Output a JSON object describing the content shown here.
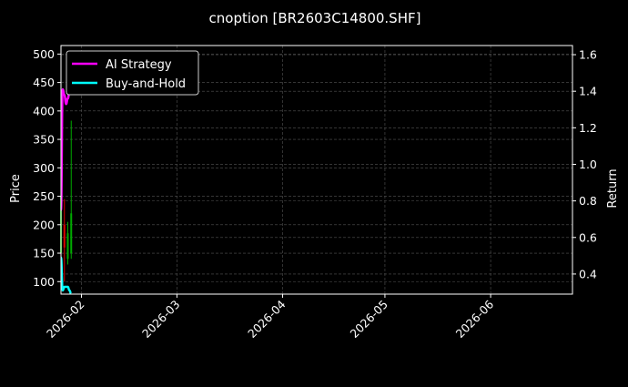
{
  "chart_data": {
    "type": "line",
    "title": "cnoption [BR2603C14800.SHF]",
    "ylabel": "Price",
    "y2label": "Return",
    "xlim": [
      "2026-01-26",
      "2026-06-25"
    ],
    "ylim": [
      78,
      515
    ],
    "y2lim": [
      0.29,
      1.65
    ],
    "x_ticks": [
      "2026-02-01",
      "2026-03-01",
      "2026-04-01",
      "2026-05-01",
      "2026-06-01"
    ],
    "x_tick_labels": [
      "2026-02",
      "2026-03",
      "2026-04",
      "2026-05",
      "2026-06"
    ],
    "y_ticks": [
      100,
      150,
      200,
      250,
      300,
      350,
      400,
      450,
      500
    ],
    "y2_ticks": [
      0.4,
      0.6,
      0.8,
      1.0,
      1.2,
      1.4,
      1.6
    ],
    "grid": true,
    "legend_position": "top-left",
    "candles": [
      {
        "date": "2026-01-26",
        "open": 150,
        "high": 270,
        "low": 110,
        "close": 250
      },
      {
        "date": "2026-01-27",
        "open": 200,
        "high": 245,
        "low": 100,
        "close": 160
      },
      {
        "date": "2026-01-28",
        "open": 140,
        "high": 205,
        "low": 130,
        "close": 185
      },
      {
        "date": "2026-01-29",
        "open": 150,
        "high": 383,
        "low": 140,
        "close": 220
      }
    ],
    "series": [
      {
        "name": "AI Strategy",
        "color": "#ff00ff",
        "axis": "right",
        "x": [
          "2026-01-26",
          "2026-01-26T12:00",
          "2026-01-27",
          "2026-01-27T12:00",
          "2026-01-28",
          "2026-01-28T12:00",
          "2026-01-29"
        ],
        "values": [
          0.75,
          1.41,
          1.38,
          1.33,
          1.36,
          1.4,
          1.42
        ]
      },
      {
        "name": "Buy-and-Hold",
        "color": "#00ffff",
        "axis": "right",
        "x": [
          "2026-01-26",
          "2026-01-26T12:00",
          "2026-01-27",
          "2026-01-27T12:00",
          "2026-01-28",
          "2026-01-28T12:00",
          "2026-01-29"
        ],
        "values": [
          0.49,
          0.31,
          0.33,
          0.33,
          0.33,
          0.31,
          0.29
        ]
      }
    ],
    "candle_up_color": "#00aa00",
    "candle_down_color": "#dd0000"
  }
}
